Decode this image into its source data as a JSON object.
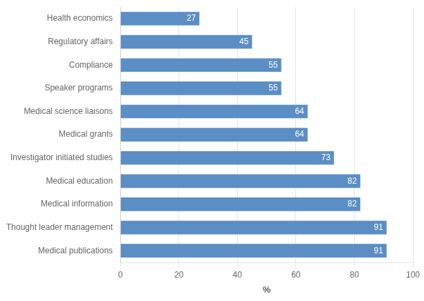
{
  "chart_data": {
    "type": "bar",
    "orientation": "horizontal",
    "categories": [
      "Medical publications",
      "Thought leader management",
      "Medical information",
      "Medical education",
      "Investigator initiated studies",
      "Medical grants",
      "Medical science liaisons",
      "Speaker programs",
      "Compliance",
      "Regulatory affairs",
      "Health economics"
    ],
    "values": [
      91,
      91,
      82,
      82,
      73,
      64,
      64,
      55,
      55,
      45,
      27
    ],
    "color": "#5b8ec4",
    "xlabel": "%",
    "xlim": [
      0,
      100
    ],
    "xticks": [
      0,
      20,
      40,
      60,
      80,
      100
    ],
    "grid": true,
    "data_labels": true
  }
}
